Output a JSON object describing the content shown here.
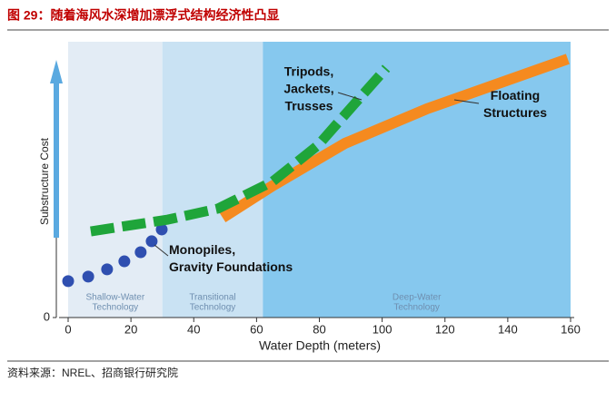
{
  "header": {
    "title": "图 29：随着海风水深增加漂浮式结构经济性凸显"
  },
  "source": "资料来源：NREL、招商银行研究院",
  "chart_data": {
    "type": "line",
    "xlabel": "Water Depth (meters)",
    "ylabel": "Substructure Cost",
    "xlim": [
      0,
      160
    ],
    "xticks": [
      0,
      20,
      40,
      60,
      80,
      100,
      120,
      140,
      160
    ],
    "ylim": [
      0,
      100
    ],
    "yticks": [
      0
    ],
    "regions": [
      {
        "label": [
          "Shallow-Water",
          "Technology"
        ],
        "from": 0,
        "to": 30,
        "color": "#e3ecf5"
      },
      {
        "label": [
          "Transitional",
          "Technology"
        ],
        "from": 30,
        "to": 62,
        "color": "#c9e2f3"
      },
      {
        "label": [
          "Deep-Water",
          "Technology"
        ],
        "from": 62,
        "to": 160,
        "color": "#86c8ee"
      }
    ],
    "series": [
      {
        "name": [
          "Monopiles,",
          "Gravity Foundations"
        ],
        "color": "#2f4fb0",
        "style": "dots",
        "x": [
          0,
          6.4,
          12.4,
          17.9,
          23.1,
          26.6,
          29.8
        ],
        "values": [
          13.6,
          15.3,
          18,
          21,
          24.4,
          28.5,
          32.9
        ]
      },
      {
        "name": [
          "Floating",
          "Structures"
        ],
        "color": "#f58a1f",
        "style": "solid",
        "x": [
          49.2,
          65.1,
          88.2,
          114.3,
          134.5,
          159.1
        ],
        "values": [
          37.3,
          49.2,
          65.1,
          78,
          86.4,
          96.6
        ]
      },
      {
        "name": [
          "Tripods,",
          "Jackets,",
          "Trusses"
        ],
        "color": "#1fa53a",
        "style": "dashed",
        "x": [
          7.2,
          31.8,
          47.7,
          65.1,
          79.6,
          91.1,
          101.3
        ],
        "values": [
          32.2,
          36.6,
          40.7,
          50.8,
          64.4,
          79.7,
          93.2
        ]
      }
    ]
  }
}
